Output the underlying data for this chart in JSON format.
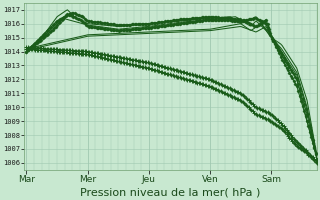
{
  "bg_color": "#c8e8d0",
  "grid_color_major": "#a0c8b0",
  "grid_color_minor": "#b8d8c0",
  "line_color": "#1a5c1a",
  "xlabel": "Pression niveau de la mer( hPa )",
  "xlabel_fontsize": 8,
  "yticks": [
    1006,
    1007,
    1008,
    1009,
    1010,
    1011,
    1012,
    1013,
    1014,
    1015,
    1016,
    1017
  ],
  "xtick_labels": [
    "Mar",
    "Mer",
    "Jeu",
    "Ven",
    "Sam"
  ],
  "xtick_positions": [
    0,
    24,
    48,
    72,
    96
  ],
  "ylim": [
    1005.5,
    1017.5
  ],
  "xlim": [
    -1,
    114
  ]
}
